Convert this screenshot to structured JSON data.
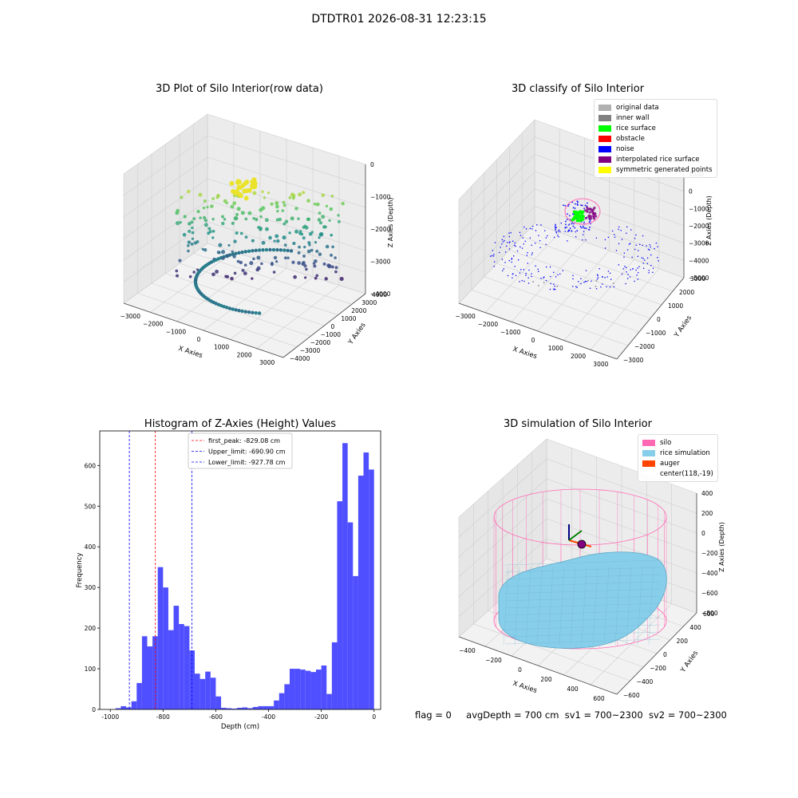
{
  "figure_title": "DTDTR01 2026-08-31 12:23:15",
  "footer": {
    "flag": "flag = 0",
    "avg_depth": "avgDepth = 700 cm",
    "sv1": "sv1 = 700~2300",
    "sv2": "sv2 = 700~2300"
  },
  "chart_data": [
    {
      "type": "scatter",
      "title": "3D Plot of Silo Interior(row data)",
      "xlabel": "X Axies",
      "ylabel": "Y Axies",
      "zlabel": "Z Axies (Depth)",
      "x_ticks": [
        "−3000",
        "−2000",
        "−1000",
        "0",
        "1000",
        "2000",
        "3000"
      ],
      "y_ticks": [
        "−4000",
        "−3000",
        "−2000",
        "−1000",
        "0",
        "1000",
        "2000",
        "3000",
        "4000"
      ],
      "z_ticks": [
        "0",
        "−1000",
        "−2000",
        "−3000",
        "−4000"
      ],
      "colormap": "viridis"
    },
    {
      "type": "scatter",
      "title": "3D classify of Silo Interior",
      "xlabel": "X Axies",
      "ylabel": "Y Axies",
      "zlabel": "Z Axies (Depth)",
      "x_ticks": [
        "−3000",
        "−2000",
        "−1000",
        "0",
        "1000",
        "2000",
        "3000"
      ],
      "y_ticks": [
        "−3000",
        "−2000",
        "−1000",
        "0",
        "1000",
        "2000",
        "3000"
      ],
      "z_ticks": [
        "1000",
        "0",
        "−1000",
        "−2000",
        "−3000",
        "−4000",
        "−5000"
      ],
      "legend": [
        {
          "label": "original data",
          "color": "#b0b0b0"
        },
        {
          "label": "inner wall",
          "color": "#808080"
        },
        {
          "label": "rice surface",
          "color": "#00ff00"
        },
        {
          "label": "obstacle",
          "color": "#ff0000"
        },
        {
          "label": "noise",
          "color": "#0000ff"
        },
        {
          "label": "interpolated rice surface",
          "color": "#800080"
        },
        {
          "label": "symmetric generated points",
          "color": "#ffff00"
        }
      ]
    },
    {
      "type": "bar",
      "title": "Histogram of Z-Axies (Height) Values",
      "xlabel": "Depth (cm)",
      "ylabel": "Frequency",
      "xlim": [
        -1040,
        25
      ],
      "ylim": [
        0,
        685
      ],
      "x_ticks": [
        -1000,
        -800,
        -600,
        -400,
        -200,
        0
      ],
      "y_ticks": [
        0,
        100,
        200,
        300,
        400,
        500,
        600
      ],
      "bar_color": "#4b4bff",
      "bin_width": 20,
      "bin_starts": [
        -980,
        -960,
        -940,
        -920,
        -900,
        -880,
        -860,
        -840,
        -820,
        -800,
        -780,
        -760,
        -740,
        -720,
        -700,
        -680,
        -660,
        -640,
        -620,
        -600,
        -580,
        -560,
        -540,
        -520,
        -500,
        -480,
        -460,
        -440,
        -420,
        -400,
        -380,
        -360,
        -340,
        -320,
        -300,
        -280,
        -260,
        -240,
        -220,
        -200,
        -180,
        -160,
        -140,
        -120,
        -100,
        -80,
        -60,
        -40,
        -20
      ],
      "values": [
        3,
        8,
        5,
        20,
        65,
        180,
        155,
        180,
        350,
        300,
        195,
        255,
        210,
        205,
        145,
        88,
        75,
        93,
        78,
        32,
        4,
        3,
        2,
        4,
        5,
        3,
        6,
        8,
        8,
        8,
        22,
        40,
        62,
        100,
        100,
        98,
        95,
        92,
        98,
        108,
        38,
        165,
        512,
        655,
        460,
        328,
        575,
        632,
        590
      ],
      "vlines": [
        {
          "label": "first_peak: -829.08 cm",
          "x": -829.08,
          "color": "#ff0000"
        },
        {
          "label": "Upper_limit: -690.90 cm",
          "x": -690.9,
          "color": "#0000ff"
        },
        {
          "label": "Lower_limit: -927.78 cm",
          "x": -927.78,
          "color": "#0000ff"
        }
      ]
    },
    {
      "type": "surface",
      "title": "3D simulation of Silo Interior",
      "xlabel": "X Axies",
      "ylabel": "Y Axies",
      "zlabel": "Z Axies (Depth)",
      "x_ticks": [
        "−400",
        "−200",
        "0",
        "200",
        "400",
        "600"
      ],
      "y_ticks": [
        "−600",
        "−400",
        "−200",
        "0",
        "200",
        "400",
        "600"
      ],
      "z_ticks": [
        "400",
        "200",
        "0",
        "−200",
        "−400",
        "−600",
        "−800"
      ],
      "legend": [
        {
          "label": "silo",
          "color": "#ff69b4"
        },
        {
          "label": "rice simulation",
          "color": "#87ceeb"
        },
        {
          "label": "auger",
          "color": "#ff4500"
        },
        {
          "label": "center(118,-19)",
          "color": ""
        }
      ]
    }
  ]
}
